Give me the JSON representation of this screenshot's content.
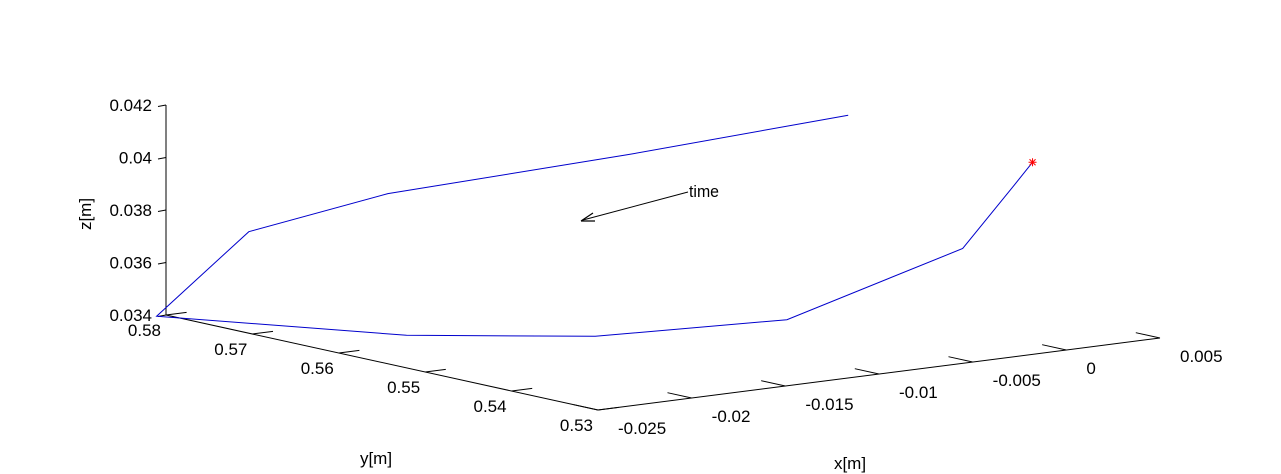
{
  "chart_data": {
    "type": "line3d",
    "xlabel": "x[m]",
    "ylabel": "y[m]",
    "zlabel": "z[m]",
    "xlim": [
      -0.025,
      0.005
    ],
    "ylim": [
      0.53,
      0.58
    ],
    "zlim": [
      0.034,
      0.042
    ],
    "x_ticks": [
      "-0.025",
      "-0.02",
      "-0.015",
      "-0.01",
      "-0.005",
      "0",
      "0.005"
    ],
    "y_ticks": [
      "0.58",
      "0.57",
      "0.56",
      "0.55",
      "0.54",
      "0.53"
    ],
    "z_ticks": [
      "0.042",
      "0.04",
      "0.038",
      "0.036",
      "0.034"
    ],
    "series": [
      {
        "color": "#0000cc",
        "points": [
          [
            0.0045,
            0.565,
            0.04
          ],
          [
            -0.005,
            0.57,
            0.039
          ],
          [
            -0.015,
            0.576,
            0.038
          ],
          [
            -0.0215,
            0.578,
            0.037
          ],
          [
            -0.0255,
            0.58,
            0.034
          ],
          [
            -0.02,
            0.563,
            0.034
          ],
          [
            -0.015,
            0.552,
            0.0343
          ],
          [
            -0.008,
            0.545,
            0.0348
          ],
          [
            0.0,
            0.542,
            0.037
          ],
          [
            0.0025,
            0.5415,
            0.0392
          ],
          [
            0.0035,
            0.5415,
            0.04
          ]
        ]
      }
    ],
    "start_marker": {
      "color": "#ff0000",
      "point": [
        0.0035,
        0.5415,
        0.04
      ]
    },
    "annotation": {
      "text": "time"
    },
    "grid": false
  }
}
